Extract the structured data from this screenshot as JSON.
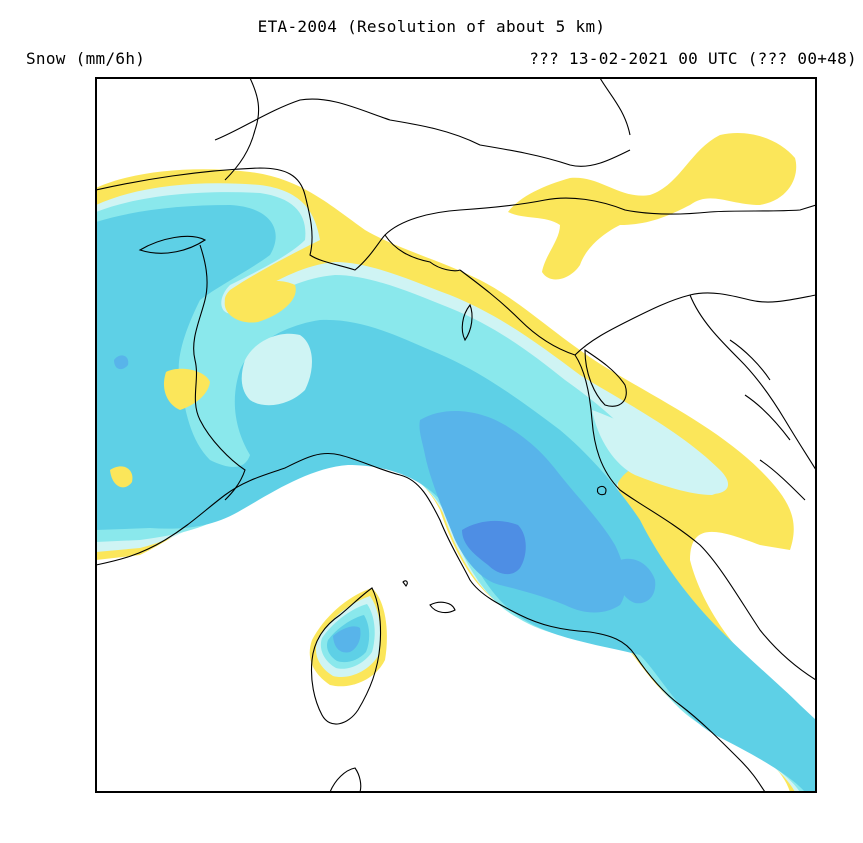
{
  "header": {
    "title": "ETA-2004 (Resolution of about 5 km)",
    "variable": "Snow (mm/6h)",
    "run_info": "??? 13-02-2021 00 UTC (??? 00+48)"
  },
  "palette": {
    "background": "#ffffff",
    "frame": "#000000",
    "coast": "#000000",
    "level_1": "#fbe65a",
    "level_2": "#cff4f4",
    "level_3": "#8ae8ec",
    "level_4": "#5ed0e6",
    "level_5": "#58b4ea",
    "level_6": "#4e8ee4"
  },
  "map": {
    "region": "Northern and central Italy, Alps, Corsica, northern Adriatic",
    "field": "snowfall accumulation"
  }
}
